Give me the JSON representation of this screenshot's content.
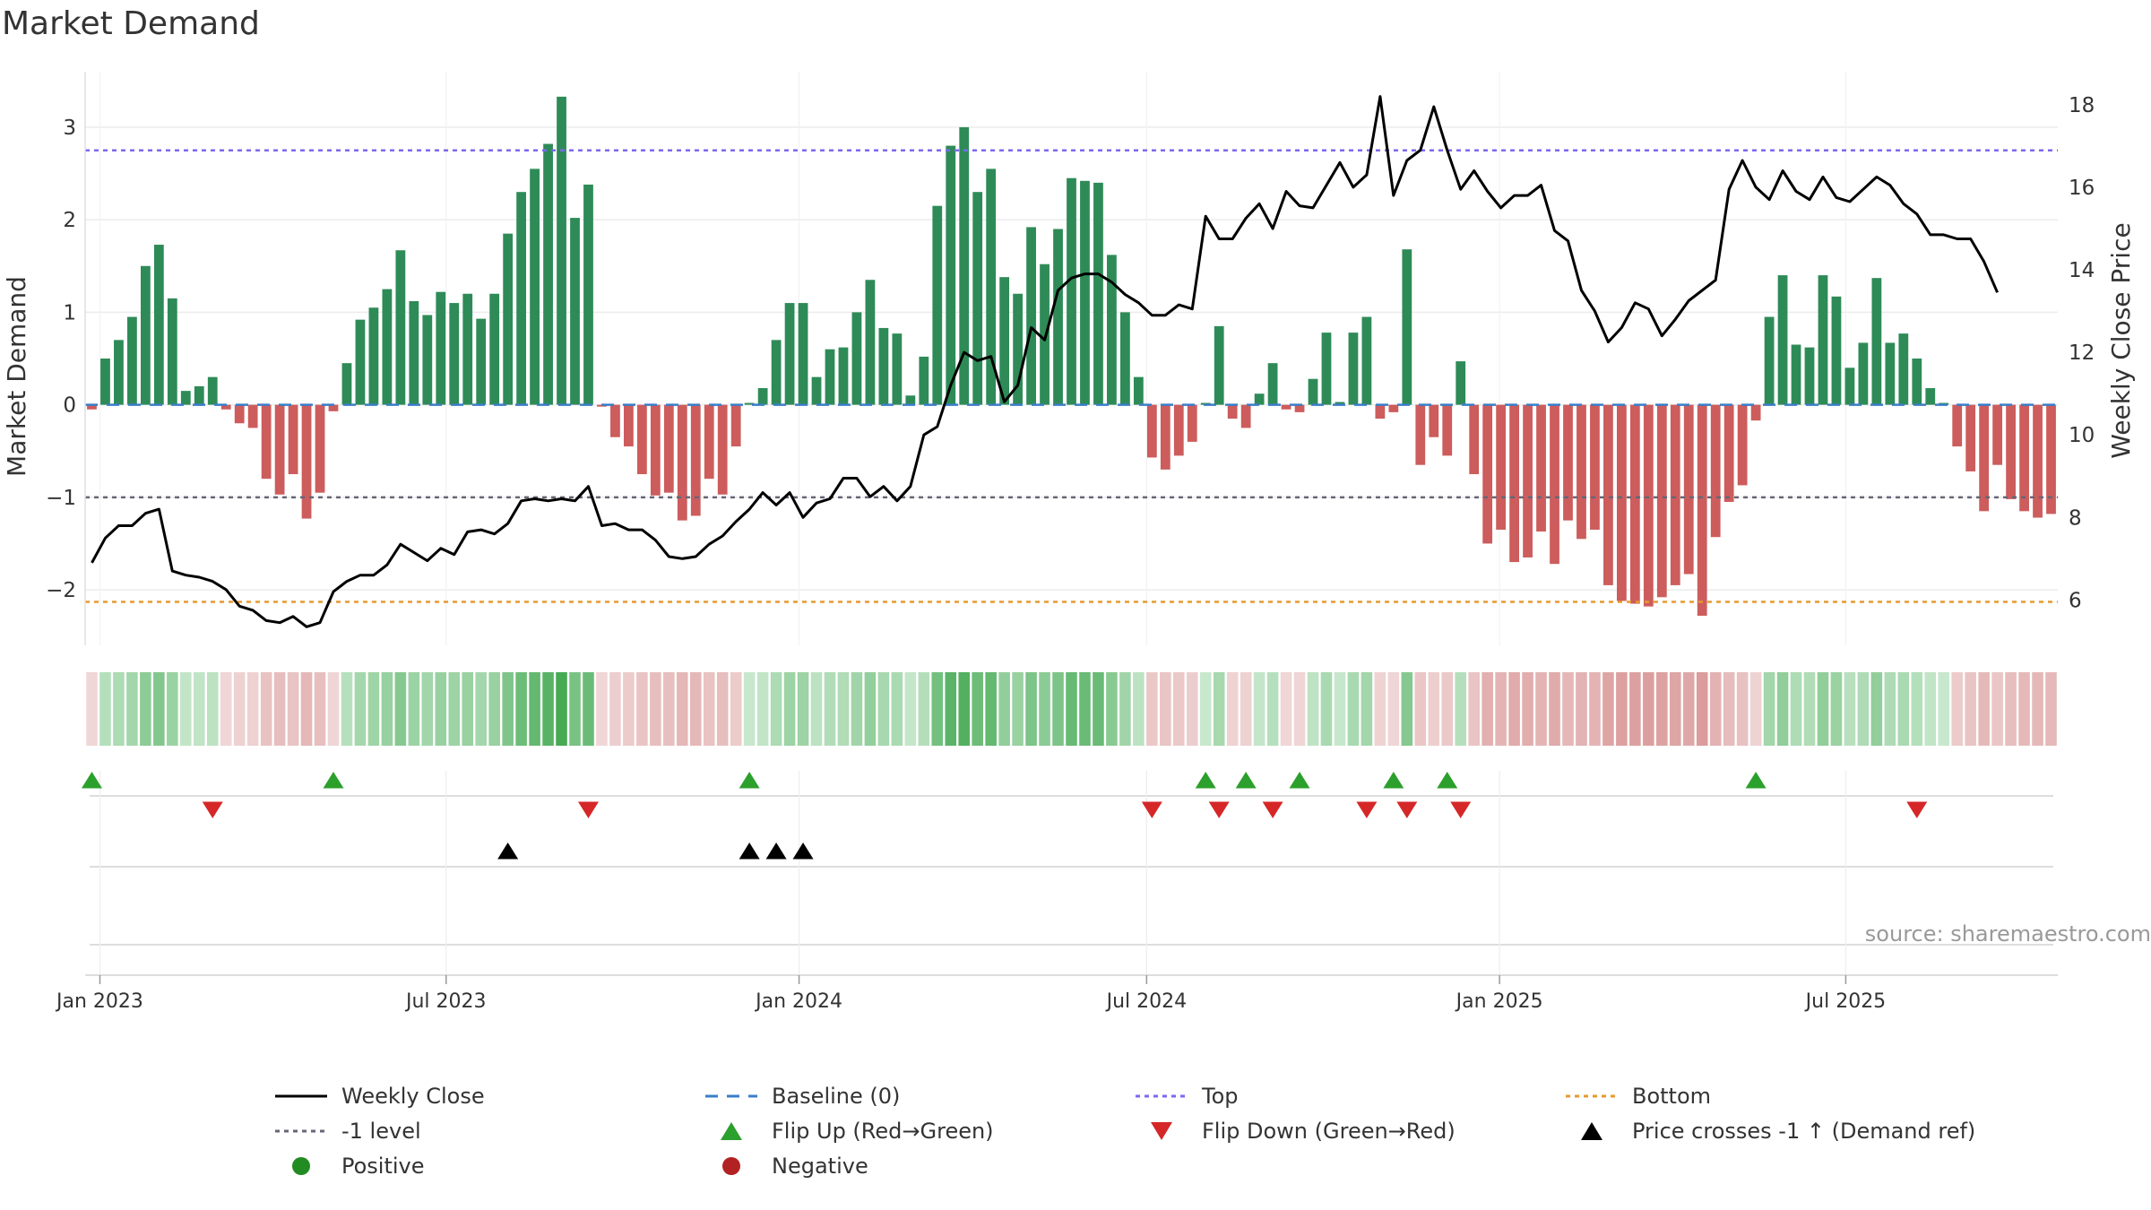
{
  "title": "Market Demand",
  "source": "source: sharemaestro.com",
  "colors": {
    "positive": "#2e8b57",
    "negative": "#cd5c5c",
    "top": "#7b68ee",
    "bottom": "#e69a2e",
    "baseline": "#3a7dc8",
    "minus1": "#666677",
    "flip_up": "#2ca02c",
    "flip_down": "#d62728",
    "cross": "#000000",
    "price": "#000000"
  },
  "chart_data": {
    "type": "bar",
    "x_axis": {
      "start_date": "2022-12-26",
      "weeks": 140,
      "ticks": [
        {
          "label": "Jan 2023",
          "week": 0.6
        },
        {
          "label": "Jul 2023",
          "week": 26.4
        },
        {
          "label": "Jan 2024",
          "week": 52.7
        },
        {
          "label": "Jul 2024",
          "week": 78.6
        },
        {
          "label": "Jan 2025",
          "week": 104.9
        },
        {
          "label": "Jul 2025",
          "week": 130.7
        }
      ]
    },
    "left_axis": {
      "label": "Market Demand",
      "ylim": [
        -2.6,
        3.6
      ],
      "ticks": [
        -2,
        -1,
        0,
        1,
        2,
        3
      ],
      "tick_labels": [
        "−2",
        "−1",
        "0",
        "1",
        "2",
        "3"
      ]
    },
    "right_axis": {
      "label": "Weekly Close Price",
      "ylim": [
        4.9,
        18.8
      ],
      "ticks": [
        6,
        8,
        10,
        12,
        14,
        16,
        18
      ],
      "tick_labels": [
        "6",
        "8",
        "10",
        "12",
        "14",
        "16",
        "18"
      ]
    },
    "reference_lines": {
      "top": 2.75,
      "bottom": -2.13,
      "minus_one": -1.0,
      "baseline": 0
    },
    "series": [
      {
        "name": "Market Demand",
        "type": "bar",
        "values": [
          -0.05,
          0.5,
          0.7,
          0.95,
          1.5,
          1.73,
          1.15,
          0.15,
          0.2,
          0.3,
          -0.05,
          -0.2,
          -0.25,
          -0.8,
          -0.97,
          -0.75,
          -1.23,
          -0.95,
          -0.07,
          0.45,
          0.92,
          1.05,
          1.25,
          1.67,
          1.12,
          0.97,
          1.22,
          1.1,
          1.2,
          0.93,
          1.2,
          1.85,
          2.3,
          2.55,
          2.82,
          3.33,
          2.02,
          2.38,
          -0.02,
          -0.35,
          -0.45,
          -0.75,
          -0.98,
          -0.95,
          -1.25,
          -1.2,
          -0.8,
          -0.97,
          -0.45,
          0.02,
          0.18,
          0.7,
          1.1,
          1.1,
          0.3,
          0.6,
          0.62,
          1.0,
          1.35,
          0.83,
          0.77,
          0.1,
          0.52,
          2.15,
          2.8,
          3.0,
          2.3,
          2.55,
          1.38,
          1.2,
          1.92,
          1.52,
          1.9,
          2.45,
          2.42,
          2.4,
          1.62,
          1.0,
          0.3,
          -0.57,
          -0.7,
          -0.55,
          -0.4,
          0.02,
          0.85,
          -0.15,
          -0.25,
          0.12,
          0.45,
          -0.05,
          -0.08,
          0.28,
          0.78,
          0.03,
          0.78,
          0.95,
          -0.15,
          -0.08,
          1.68,
          -0.65,
          -0.35,
          -0.55,
          0.47,
          -0.75,
          -1.5,
          -1.35,
          -1.7,
          -1.65,
          -1.37,
          -1.72,
          -1.25,
          -1.45,
          -1.35,
          -1.95,
          -2.12,
          -2.15,
          -2.18,
          -2.08,
          -1.95,
          -1.83,
          -2.28,
          -1.43,
          -1.05,
          -0.87,
          -0.17,
          0.95,
          1.4,
          0.65,
          0.62,
          1.4,
          1.17,
          0.4,
          0.67,
          1.37,
          0.67,
          0.77,
          0.5,
          0.18,
          0.02,
          -0.45,
          -0.72,
          -1.15,
          -0.65,
          -1.02,
          -1.15,
          -1.22,
          -1.18
        ]
      },
      {
        "name": "Weekly Close",
        "type": "line",
        "values": [
          6.9,
          7.5,
          7.8,
          7.8,
          8.1,
          8.2,
          6.7,
          6.6,
          6.55,
          6.45,
          6.25,
          5.85,
          5.75,
          5.5,
          5.45,
          5.6,
          5.35,
          5.45,
          6.2,
          6.45,
          6.6,
          6.6,
          6.85,
          7.35,
          7.15,
          6.95,
          7.25,
          7.1,
          7.65,
          7.7,
          7.6,
          7.85,
          8.4,
          8.45,
          8.4,
          8.45,
          8.4,
          8.75,
          7.8,
          7.85,
          7.7,
          7.7,
          7.45,
          7.05,
          7.0,
          7.05,
          7.35,
          7.55,
          7.9,
          8.2,
          8.6,
          8.3,
          8.6,
          8.0,
          8.35,
          8.45,
          8.95,
          8.95,
          8.5,
          8.75,
          8.4,
          8.75,
          10.0,
          10.2,
          11.2,
          12.0,
          11.8,
          11.9,
          10.8,
          11.2,
          12.6,
          12.3,
          13.5,
          13.8,
          13.9,
          13.9,
          13.7,
          13.4,
          13.2,
          12.9,
          12.9,
          13.15,
          13.05,
          15.3,
          14.75,
          14.75,
          15.25,
          15.6,
          15.0,
          15.9,
          15.55,
          15.5,
          16.05,
          16.6,
          16.0,
          16.3,
          18.2,
          15.8,
          16.65,
          16.9,
          17.95,
          16.9,
          15.95,
          16.4,
          15.9,
          15.5,
          15.8,
          15.8,
          16.05,
          14.95,
          14.7,
          13.5,
          13.0,
          12.25,
          12.6,
          13.2,
          13.05,
          12.4,
          12.8,
          13.25,
          13.5,
          13.75,
          15.95,
          16.65,
          16.0,
          15.7,
          16.4,
          15.9,
          15.7,
          16.25,
          15.75,
          15.65,
          15.95,
          16.25,
          16.05,
          15.6,
          15.35,
          14.85,
          14.85,
          14.75,
          14.75,
          14.2,
          13.45
        ]
      }
    ],
    "heat_strip": "color intensity per week follows Market Demand value",
    "markers": {
      "flip_up_weeks": [
        0,
        18,
        49,
        83,
        86,
        90,
        97,
        101,
        124
      ],
      "flip_down_weeks": [
        9,
        37,
        79,
        84,
        88,
        95,
        98,
        102,
        136
      ],
      "cross_minus1_weeks": [
        31,
        49,
        51,
        53
      ]
    },
    "legend": [
      {
        "label": "Weekly Close",
        "symbol": "line",
        "color": "#000000"
      },
      {
        "label": "Baseline (0)",
        "symbol": "dash",
        "color": "#3a7dc8"
      },
      {
        "label": "Top",
        "symbol": "dot",
        "color": "#7b68ee"
      },
      {
        "label": "Bottom",
        "symbol": "dot",
        "color": "#e69a2e"
      },
      {
        "label": "-1 level",
        "symbol": "dot",
        "color": "#666677"
      },
      {
        "label": "Flip Up (Red→Green)",
        "symbol": "triangle-up",
        "color": "#2ca02c"
      },
      {
        "label": "Flip Down (Green→Red)",
        "symbol": "triangle-down",
        "color": "#d62728"
      },
      {
        "label": "Price crosses -1 ↑ (Demand ref)",
        "symbol": "triangle-up",
        "color": "#000000"
      },
      {
        "label": "Positive",
        "symbol": "circle",
        "color": "#228b22"
      },
      {
        "label": "Negative",
        "symbol": "circle",
        "color": "#b22222"
      }
    ]
  }
}
